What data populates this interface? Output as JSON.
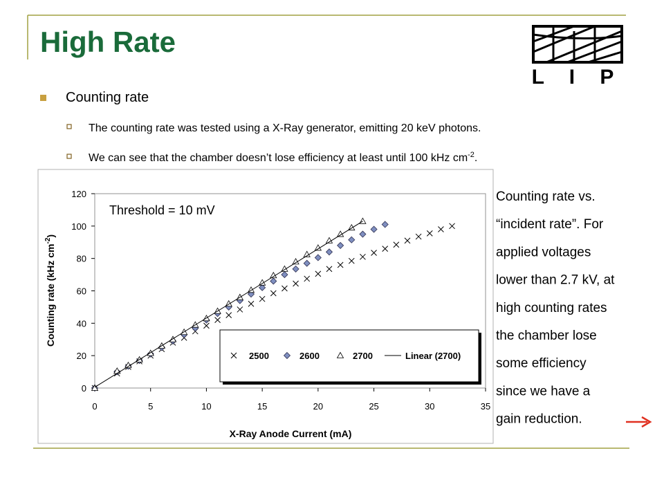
{
  "header": {
    "title": "High Rate",
    "logo": "L I P"
  },
  "bullets": {
    "main": "Counting rate",
    "sub": [
      {
        "text": "The counting rate was tested using a X-Ray generator, emitting 20 keV photons."
      },
      {
        "text": "We can see that the chamber doesn’t lose efficiency  at least until 100 kHz cm",
        "sup": "-2",
        "end": "."
      }
    ]
  },
  "caption": {
    "lines": [
      "Counting rate vs.",
      "“incident rate”. For",
      "applied voltages",
      "lower than 2.7 kV, at",
      "high counting rates",
      "the chamber lose",
      "some efficiency",
      "since we have a",
      "gain reduction."
    ]
  },
  "chart_data": {
    "type": "scatter",
    "annotation": "Threshold = 10 mV",
    "x_label": "X-Ray Anode Current (mA)",
    "y_label": {
      "text": "Counting rate (kHz cm",
      "sup": "-2",
      "end": ")"
    },
    "xlim": [
      0,
      35
    ],
    "ylim": [
      0,
      120
    ],
    "xticks": [
      0,
      5,
      10,
      15,
      20,
      25,
      30,
      35
    ],
    "yticks": [
      0,
      20,
      40,
      60,
      80,
      100,
      120
    ],
    "grid": false,
    "series": [
      {
        "name": "2500",
        "marker": "x",
        "color": "#000000",
        "x": [
          0,
          2,
          3,
          4,
          5,
          6,
          7,
          8,
          9,
          10,
          11,
          12,
          13,
          14,
          15,
          16,
          17,
          18,
          19,
          20,
          21,
          22,
          23,
          24,
          25,
          26,
          27,
          28,
          29,
          30,
          31,
          32
        ],
        "values": [
          0,
          9,
          13,
          16.5,
          20,
          24,
          28,
          31,
          35,
          38.5,
          42,
          45,
          48.5,
          52,
          55,
          58.5,
          61.5,
          64.5,
          67.5,
          70.5,
          73.5,
          76,
          78.5,
          81,
          83.5,
          86,
          88.5,
          91,
          93.5,
          95.5,
          98,
          100
        ]
      },
      {
        "name": "2600",
        "marker": "diamond",
        "color": "#7f8fc0",
        "x": [
          0,
          2,
          3,
          4,
          5,
          6,
          7,
          8,
          9,
          10,
          11,
          12,
          13,
          14,
          15,
          16,
          17,
          18,
          19,
          20,
          21,
          22,
          23,
          24,
          25,
          26
        ],
        "values": [
          0,
          10,
          13.5,
          17,
          21,
          25,
          29,
          33,
          37,
          42,
          46,
          50,
          54,
          58,
          62,
          66,
          70,
          73.5,
          77,
          80.5,
          84,
          88,
          91.5,
          95,
          98,
          101
        ]
      },
      {
        "name": "2700",
        "marker": "triangle",
        "color": "#ffffff",
        "x": [
          0,
          2,
          3,
          4,
          5,
          6,
          7,
          8,
          9,
          10,
          11,
          12,
          13,
          14,
          15,
          16,
          17,
          18,
          19,
          20,
          21,
          22,
          23,
          24
        ],
        "values": [
          0,
          10.5,
          14,
          17.5,
          21.5,
          26,
          30,
          34.5,
          39,
          43,
          47.5,
          52,
          56,
          60.5,
          65,
          69.5,
          73.5,
          78,
          82.5,
          86.5,
          91,
          95,
          99,
          103
        ]
      },
      {
        "name": "Linear (2700)",
        "marker": "line",
        "color": "#000000",
        "x": [
          0,
          24
        ],
        "values": [
          0.5,
          103
        ]
      }
    ]
  }
}
